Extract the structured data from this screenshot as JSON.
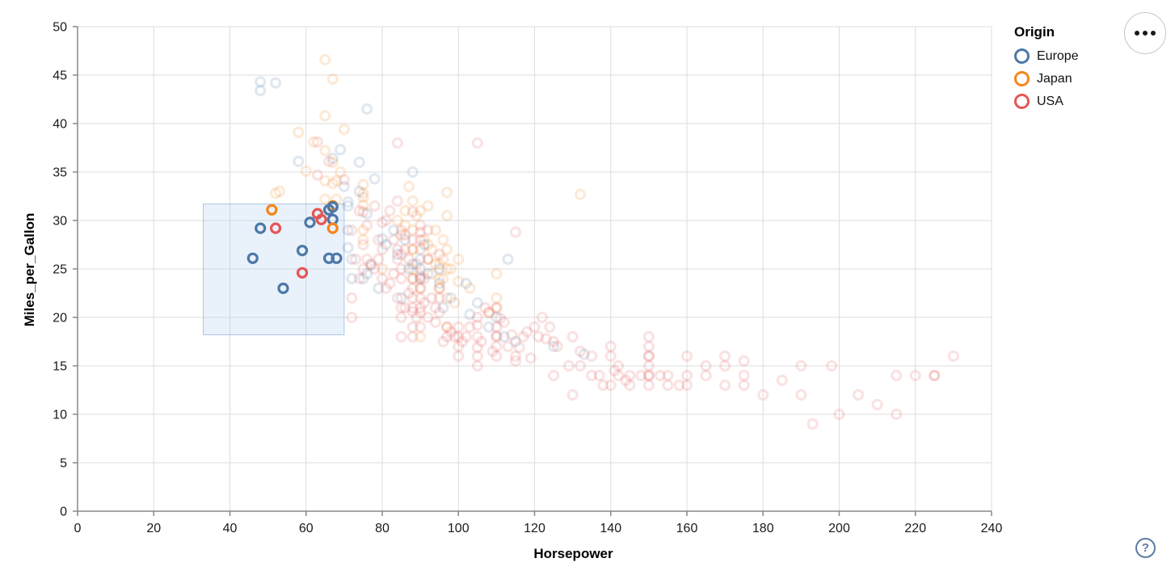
{
  "legend": {
    "title": "Origin",
    "items": [
      {
        "label": "Europe",
        "color": "#4c78a8"
      },
      {
        "label": "Japan",
        "color": "#f58518"
      },
      {
        "label": "USA",
        "color": "#e45756"
      }
    ]
  },
  "buttons": {
    "menu_icon": "ellipsis",
    "help_label": "?"
  },
  "chart_data": {
    "type": "scatter",
    "title": "",
    "xlabel": "Horsepower",
    "ylabel": "Miles_per_Gallon",
    "xlim": [
      0,
      240
    ],
    "ylim": [
      0,
      50
    ],
    "x_ticks": [
      0,
      20,
      40,
      60,
      80,
      100,
      120,
      140,
      160,
      180,
      200,
      220,
      240
    ],
    "y_ticks": [
      0,
      5,
      10,
      15,
      20,
      25,
      30,
      35,
      40,
      45,
      50
    ],
    "grid": true,
    "legend_position": "top-right",
    "point_style": {
      "shape": "ring",
      "radius": 5.5,
      "stroke_width": 3.2,
      "unselected_opacity": 0.17,
      "selected_opacity": 1
    },
    "brush": {
      "Horsepower": [
        33,
        70
      ],
      "Miles_per_Gallon": [
        18.2,
        31.7
      ],
      "fill": "#9dbde8",
      "fill_opacity": 0.22,
      "stroke": "#8fb0dd"
    },
    "origin_colors": {
      "Europe": "#4c78a8",
      "Japan": "#f58518",
      "USA": "#e45756"
    },
    "fields": [
      "Horsepower",
      "Miles_per_Gallon",
      "Origin"
    ],
    "points": [
      [
        51,
        31.1,
        "Japan"
      ],
      [
        48,
        29.2,
        "Europe"
      ],
      [
        52,
        29.2,
        "USA"
      ],
      [
        61,
        29.8,
        "Europe"
      ],
      [
        63,
        30.7,
        "USA"
      ],
      [
        64,
        30.1,
        "USA"
      ],
      [
        66,
        31.1,
        "Europe"
      ],
      [
        67,
        31.5,
        "Japan"
      ],
      [
        67,
        31.4,
        "Europe"
      ],
      [
        67,
        30.1,
        "Europe"
      ],
      [
        67,
        29.2,
        "Japan"
      ],
      [
        59,
        26.9,
        "Europe"
      ],
      [
        46,
        26.1,
        "Europe"
      ],
      [
        66,
        26.1,
        "Europe"
      ],
      [
        68,
        26.1,
        "Europe"
      ],
      [
        59,
        24.6,
        "USA"
      ],
      [
        54,
        23,
        "Europe"
      ],
      [
        65,
        46.6,
        "Japan"
      ],
      [
        67,
        44.6,
        "Japan"
      ],
      [
        48,
        44.3,
        "Europe"
      ],
      [
        52,
        44.2,
        "Europe"
      ],
      [
        48,
        43.4,
        "Europe"
      ],
      [
        76,
        41.5,
        "Europe"
      ],
      [
        65,
        40.8,
        "Japan"
      ],
      [
        70,
        39.4,
        "Japan"
      ],
      [
        58,
        39.1,
        "Japan"
      ],
      [
        62,
        38.1,
        "Japan"
      ],
      [
        65,
        37.2,
        "Japan"
      ],
      [
        69,
        35,
        "Japan"
      ],
      [
        60,
        35.1,
        "Japan"
      ],
      [
        53,
        33,
        "Japan"
      ],
      [
        52,
        32.8,
        "Japan"
      ],
      [
        65,
        32.2,
        "Japan"
      ],
      [
        132,
        32.7,
        "Japan"
      ],
      [
        75,
        32.8,
        "Japan"
      ],
      [
        75,
        32.4,
        "Japan"
      ],
      [
        68,
        34.1,
        "Japan"
      ],
      [
        65,
        34.1,
        "Japan"
      ],
      [
        67,
        33.8,
        "Japan"
      ],
      [
        75,
        33.7,
        "Japan"
      ],
      [
        68,
        32.2,
        "Japan"
      ],
      [
        97,
        32.9,
        "Japan"
      ],
      [
        88,
        32,
        "Japan"
      ],
      [
        67,
        36,
        "Japan"
      ],
      [
        95,
        24,
        "Japan"
      ],
      [
        88,
        27,
        "Japan"
      ],
      [
        88,
        27,
        "Japan"
      ],
      [
        97,
        19,
        "Japan"
      ],
      [
        90,
        18,
        "Japan"
      ],
      [
        100,
        23.7,
        "Japan"
      ],
      [
        110,
        21,
        "Japan"
      ],
      [
        97,
        22,
        "Japan"
      ],
      [
        95,
        23,
        "Japan"
      ],
      [
        75,
        29,
        "Japan"
      ],
      [
        96,
        24,
        "Japan"
      ],
      [
        85,
        28.5,
        "Japan"
      ],
      [
        92,
        26,
        "Japan"
      ],
      [
        75,
        28,
        "Japan"
      ],
      [
        80,
        25,
        "Japan"
      ],
      [
        110,
        22,
        "Japan"
      ],
      [
        97,
        27,
        "Japan"
      ],
      [
        75,
        31.6,
        "Japan"
      ],
      [
        97,
        30.5,
        "Japan"
      ],
      [
        92,
        27.5,
        "Japan"
      ],
      [
        88,
        24,
        "Japan"
      ],
      [
        93,
        24.5,
        "Japan"
      ],
      [
        94,
        25.5,
        "Japan"
      ],
      [
        96,
        28,
        "Japan"
      ],
      [
        100,
        26,
        "Japan"
      ],
      [
        88,
        29,
        "Japan"
      ],
      [
        92,
        31.5,
        "Japan"
      ],
      [
        90,
        31,
        "Japan"
      ],
      [
        96,
        26,
        "Japan"
      ],
      [
        98,
        25,
        "Japan"
      ],
      [
        108,
        20.5,
        "Japan"
      ],
      [
        95,
        25.5,
        "Japan"
      ],
      [
        88,
        25,
        "Japan"
      ],
      [
        90,
        23,
        "Japan"
      ],
      [
        93,
        27,
        "Japan"
      ],
      [
        97,
        25,
        "Japan"
      ],
      [
        89,
        30.5,
        "Japan"
      ],
      [
        91,
        28,
        "Japan"
      ],
      [
        94,
        29,
        "Japan"
      ],
      [
        86,
        31,
        "Japan"
      ],
      [
        87,
        33.5,
        "Japan"
      ],
      [
        99,
        21.5,
        "Japan"
      ],
      [
        103,
        23,
        "Japan"
      ],
      [
        110,
        24.5,
        "Japan"
      ],
      [
        84,
        30,
        "Japan"
      ],
      [
        86,
        29.5,
        "Japan"
      ],
      [
        69,
        37.3,
        "Europe"
      ],
      [
        58,
        36.1,
        "Europe"
      ],
      [
        88,
        35,
        "Europe"
      ],
      [
        78,
        34.3,
        "Europe"
      ],
      [
        74,
        33,
        "Europe"
      ],
      [
        71,
        31.9,
        "Europe"
      ],
      [
        71,
        31.5,
        "Europe"
      ],
      [
        76,
        30.7,
        "Europe"
      ],
      [
        71,
        29,
        "Europe"
      ],
      [
        83,
        29,
        "Europe"
      ],
      [
        80,
        28.1,
        "Europe"
      ],
      [
        86,
        28,
        "Europe"
      ],
      [
        75,
        24,
        "Europe"
      ],
      [
        90,
        25,
        "Europe"
      ],
      [
        88,
        25.5,
        "Europe"
      ],
      [
        87,
        25,
        "Europe"
      ],
      [
        90,
        24,
        "Europe"
      ],
      [
        95,
        25,
        "Europe"
      ],
      [
        113,
        26,
        "Europe"
      ],
      [
        112,
        18,
        "Europe"
      ],
      [
        98,
        22,
        "Europe"
      ],
      [
        125,
        17,
        "Europe"
      ],
      [
        133,
        16.2,
        "Europe"
      ],
      [
        103,
        20.3,
        "Europe"
      ],
      [
        105,
        21.5,
        "Europe"
      ],
      [
        77,
        25.4,
        "Europe"
      ],
      [
        71,
        27.2,
        "Europe"
      ],
      [
        67,
        36.4,
        "Europe"
      ],
      [
        90,
        26,
        "Europe"
      ],
      [
        72,
        26,
        "Europe"
      ],
      [
        95,
        23.5,
        "Europe"
      ],
      [
        85,
        22,
        "Europe"
      ],
      [
        110,
        20,
        "Europe"
      ],
      [
        72,
        24,
        "Europe"
      ],
      [
        76,
        24.5,
        "Europe"
      ],
      [
        81,
        27.5,
        "Europe"
      ],
      [
        79,
        23,
        "Europe"
      ],
      [
        84,
        26.5,
        "Europe"
      ],
      [
        92,
        24.5,
        "Europe"
      ],
      [
        96,
        21,
        "Europe"
      ],
      [
        102,
        23.5,
        "Europe"
      ],
      [
        108,
        19,
        "Europe"
      ],
      [
        115,
        17.5,
        "Europe"
      ],
      [
        74,
        36,
        "Europe"
      ],
      [
        70,
        33.5,
        "Europe"
      ],
      [
        91,
        27.5,
        "Europe"
      ],
      [
        130,
        18,
        "USA"
      ],
      [
        165,
        15,
        "USA"
      ],
      [
        150,
        18,
        "USA"
      ],
      [
        150,
        16,
        "USA"
      ],
      [
        140,
        17,
        "USA"
      ],
      [
        198,
        15,
        "USA"
      ],
      [
        220,
        14,
        "USA"
      ],
      [
        215,
        14,
        "USA"
      ],
      [
        225,
        14,
        "USA"
      ],
      [
        190,
        15,
        "USA"
      ],
      [
        170,
        15,
        "USA"
      ],
      [
        160,
        14,
        "USA"
      ],
      [
        150,
        15,
        "USA"
      ],
      [
        225,
        14,
        "USA"
      ],
      [
        215,
        10,
        "USA"
      ],
      [
        200,
        10,
        "USA"
      ],
      [
        210,
        11,
        "USA"
      ],
      [
        193,
        9,
        "USA"
      ],
      [
        180,
        12,
        "USA"
      ],
      [
        170,
        13,
        "USA"
      ],
      [
        175,
        13,
        "USA"
      ],
      [
        175,
        14,
        "USA"
      ],
      [
        165,
        14,
        "USA"
      ],
      [
        153,
        14,
        "USA"
      ],
      [
        150,
        14,
        "USA"
      ],
      [
        155,
        13,
        "USA"
      ],
      [
        160,
        13,
        "USA"
      ],
      [
        190,
        12,
        "USA"
      ],
      [
        150,
        13,
        "USA"
      ],
      [
        145,
        13,
        "USA"
      ],
      [
        137,
        14,
        "USA"
      ],
      [
        158,
        13,
        "USA"
      ],
      [
        145,
        14,
        "USA"
      ],
      [
        230,
        16,
        "USA"
      ],
      [
        130,
        12,
        "USA"
      ],
      [
        140,
        13,
        "USA"
      ],
      [
        148,
        14,
        "USA"
      ],
      [
        150,
        14,
        "USA"
      ],
      [
        140,
        16,
        "USA"
      ],
      [
        142,
        15,
        "USA"
      ],
      [
        129,
        15,
        "USA"
      ],
      [
        138,
        13,
        "USA"
      ],
      [
        135,
        14,
        "USA"
      ],
      [
        155,
        14,
        "USA"
      ],
      [
        142,
        14,
        "USA"
      ],
      [
        125,
        14,
        "USA"
      ],
      [
        150,
        16,
        "USA"
      ],
      [
        132,
        16.5,
        "USA"
      ],
      [
        141,
        14.5,
        "USA"
      ],
      [
        132,
        15,
        "USA"
      ],
      [
        144,
        13.5,
        "USA"
      ],
      [
        135,
        16,
        "USA"
      ],
      [
        150,
        17,
        "USA"
      ],
      [
        160,
        16,
        "USA"
      ],
      [
        170,
        16,
        "USA"
      ],
      [
        175,
        15.5,
        "USA"
      ],
      [
        185,
        13.5,
        "USA"
      ],
      [
        205,
        12,
        "USA"
      ],
      [
        95,
        22,
        "USA"
      ],
      [
        97,
        18,
        "USA"
      ],
      [
        100,
        19,
        "USA"
      ],
      [
        105,
        16,
        "USA"
      ],
      [
        100,
        17,
        "USA"
      ],
      [
        100,
        18,
        "USA"
      ],
      [
        110,
        18,
        "USA"
      ],
      [
        110,
        19,
        "USA"
      ],
      [
        110,
        21,
        "USA"
      ],
      [
        105,
        15,
        "USA"
      ],
      [
        105,
        20,
        "USA"
      ],
      [
        105,
        19.2,
        "USA"
      ],
      [
        105,
        18,
        "USA"
      ],
      [
        110,
        17,
        "USA"
      ],
      [
        110,
        16,
        "USA"
      ],
      [
        100,
        16,
        "USA"
      ],
      [
        98,
        18.5,
        "USA"
      ],
      [
        97,
        19,
        "USA"
      ],
      [
        96,
        17.5,
        "USA"
      ],
      [
        112,
        19.5,
        "USA"
      ],
      [
        115,
        15.5,
        "USA"
      ],
      [
        120,
        19,
        "USA"
      ],
      [
        122,
        20,
        "USA"
      ],
      [
        125,
        17.5,
        "USA"
      ],
      [
        110,
        18.1,
        "USA"
      ],
      [
        107,
        21,
        "USA"
      ],
      [
        105,
        16.9,
        "USA"
      ],
      [
        103,
        19,
        "USA"
      ],
      [
        115,
        16,
        "USA"
      ],
      [
        118,
        18.5,
        "USA"
      ],
      [
        113,
        17,
        "USA"
      ],
      [
        108,
        20.5,
        "USA"
      ],
      [
        116,
        16.9,
        "USA"
      ],
      [
        102,
        18,
        "USA"
      ],
      [
        106,
        17.5,
        "USA"
      ],
      [
        111,
        19.9,
        "USA"
      ],
      [
        95,
        20.5,
        "USA"
      ],
      [
        99,
        18,
        "USA"
      ],
      [
        101,
        17.5,
        "USA"
      ],
      [
        114,
        18.2,
        "USA"
      ],
      [
        119,
        15.8,
        "USA"
      ],
      [
        126,
        17,
        "USA"
      ],
      [
        124,
        19,
        "USA"
      ],
      [
        121,
        18,
        "USA"
      ],
      [
        109,
        16.5,
        "USA"
      ],
      [
        117,
        18,
        "USA"
      ],
      [
        123,
        17.8,
        "USA"
      ],
      [
        115,
        28.8,
        "USA"
      ],
      [
        85,
        21,
        "USA"
      ],
      [
        90,
        21,
        "USA"
      ],
      [
        88,
        19,
        "USA"
      ],
      [
        88,
        21,
        "USA"
      ],
      [
        88,
        22,
        "USA"
      ],
      [
        88,
        18,
        "USA"
      ],
      [
        88,
        24,
        "USA"
      ],
      [
        88,
        20.6,
        "USA"
      ],
      [
        90,
        22,
        "USA"
      ],
      [
        90,
        24,
        "USA"
      ],
      [
        90,
        19,
        "USA"
      ],
      [
        90,
        20.5,
        "USA"
      ],
      [
        90,
        24.3,
        "USA"
      ],
      [
        85,
        20,
        "USA"
      ],
      [
        85,
        25,
        "USA"
      ],
      [
        85,
        18,
        "USA"
      ],
      [
        86,
        27,
        "USA"
      ],
      [
        90,
        27,
        "USA"
      ],
      [
        84,
        27,
        "USA"
      ],
      [
        84,
        26,
        "USA"
      ],
      [
        92,
        26,
        "USA"
      ],
      [
        83,
        28,
        "USA"
      ],
      [
        88,
        28,
        "USA"
      ],
      [
        90,
        28.8,
        "USA"
      ],
      [
        75,
        25,
        "USA"
      ],
      [
        72,
        20,
        "USA"
      ],
      [
        72,
        22,
        "USA"
      ],
      [
        80,
        24,
        "USA"
      ],
      [
        78,
        25,
        "USA"
      ],
      [
        76,
        26,
        "USA"
      ],
      [
        81,
        23,
        "USA"
      ],
      [
        87,
        22.5,
        "USA"
      ],
      [
        89,
        20,
        "USA"
      ],
      [
        91,
        21.5,
        "USA"
      ],
      [
        93,
        22,
        "USA"
      ],
      [
        94,
        19.5,
        "USA"
      ],
      [
        85,
        24,
        "USA"
      ],
      [
        82,
        23.5,
        "USA"
      ],
      [
        79,
        26,
        "USA"
      ],
      [
        77,
        25.5,
        "USA"
      ],
      [
        86,
        21,
        "USA"
      ],
      [
        84,
        22,
        "USA"
      ],
      [
        88,
        23,
        "USA"
      ],
      [
        90,
        23,
        "USA"
      ],
      [
        92,
        20,
        "USA"
      ],
      [
        85,
        26.5,
        "USA"
      ],
      [
        83,
        24.5,
        "USA"
      ],
      [
        80,
        27,
        "USA"
      ],
      [
        74,
        24,
        "USA"
      ],
      [
        73,
        26,
        "USA"
      ],
      [
        95,
        23,
        "USA"
      ],
      [
        87,
        26,
        "USA"
      ],
      [
        89,
        25.5,
        "USA"
      ],
      [
        91,
        24,
        "USA"
      ],
      [
        94,
        21,
        "USA"
      ],
      [
        90,
        28,
        "USA"
      ],
      [
        75,
        30.9,
        "USA"
      ],
      [
        70,
        34.2,
        "USA"
      ],
      [
        63,
        34.7,
        "USA"
      ],
      [
        63,
        38.1,
        "USA"
      ],
      [
        66,
        36.1,
        "USA"
      ],
      [
        84,
        32,
        "USA"
      ],
      [
        82,
        31,
        "USA"
      ],
      [
        79,
        28,
        "USA"
      ],
      [
        84,
        38,
        "USA"
      ],
      [
        105,
        38,
        "USA"
      ],
      [
        92,
        29,
        "USA"
      ],
      [
        88,
        30.9,
        "USA"
      ],
      [
        85,
        29,
        "USA"
      ],
      [
        76,
        29.5,
        "USA"
      ],
      [
        74,
        31,
        "USA"
      ],
      [
        72,
        29,
        "USA"
      ],
      [
        80,
        29.8,
        "USA"
      ],
      [
        78,
        31.5,
        "USA"
      ],
      [
        81,
        30,
        "USA"
      ],
      [
        86,
        28.5,
        "USA"
      ],
      [
        90,
        29.5,
        "USA"
      ],
      [
        75,
        27.5,
        "USA"
      ],
      [
        95,
        26.5,
        "USA"
      ]
    ]
  }
}
